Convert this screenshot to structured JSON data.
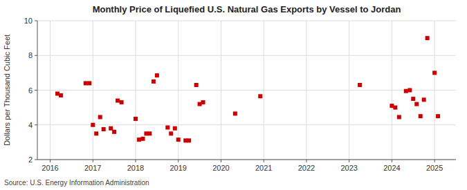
{
  "chart_data": {
    "type": "scatter",
    "title": "Monthly Price of Liquefied U.S. Natural Gas Exports by Vessel to Jordan",
    "y_label": "Dollars per Thousand Cubic Feet",
    "source": "Source: U.S. Energy Information Administration",
    "color": "#cc0000",
    "marker": "square",
    "grid": true,
    "x": [
      2016.17,
      2016.25,
      2016.83,
      2016.92,
      2017.0,
      2017.08,
      2017.17,
      2017.25,
      2017.42,
      2017.5,
      2017.58,
      2017.67,
      2018.0,
      2018.08,
      2018.17,
      2018.25,
      2018.33,
      2018.42,
      2018.5,
      2018.75,
      2018.83,
      2018.92,
      2019.0,
      2019.17,
      2019.25,
      2019.42,
      2019.5,
      2019.58,
      2020.33,
      2020.92,
      2023.25,
      2024.0,
      2024.08,
      2024.17,
      2024.33,
      2024.42,
      2024.5,
      2024.58,
      2024.67,
      2024.75,
      2024.83,
      2025.0,
      2025.08
    ],
    "values": [
      5.8,
      5.7,
      6.4,
      6.4,
      4.0,
      3.5,
      4.45,
      3.75,
      3.8,
      3.6,
      5.4,
      5.3,
      4.35,
      3.15,
      3.2,
      3.5,
      3.5,
      6.5,
      6.85,
      3.85,
      3.5,
      3.8,
      3.15,
      3.1,
      3.1,
      6.3,
      5.2,
      5.3,
      4.65,
      5.65,
      6.3,
      5.1,
      5.0,
      4.45,
      5.95,
      6.0,
      5.5,
      5.2,
      4.5,
      5.45,
      9.0,
      7.0,
      4.5
    ],
    "xlim": [
      2015.7,
      2025.5
    ],
    "xticks": [
      2016,
      2017,
      2018,
      2019,
      2020,
      2021,
      2022,
      2023,
      2024,
      2025
    ],
    "ylim": [
      2,
      10
    ],
    "yticks": [
      2,
      4,
      6,
      8,
      10
    ]
  }
}
